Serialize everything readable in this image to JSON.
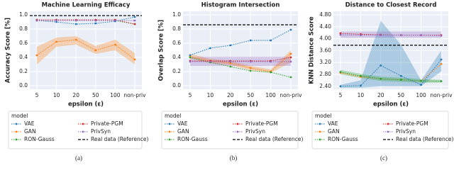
{
  "chart_data": [
    {
      "type": "line",
      "title": "Machine Learning Efficacy",
      "xlabel": "epsilon (ε)",
      "ylabel": "Accuracy Score [%]",
      "categories": [
        "5",
        "10",
        "20",
        "50",
        "100",
        "non-priv"
      ],
      "series": [
        {
          "name": "VAE",
          "color": "#1f77b4",
          "values": [
            0.92,
            0.9,
            0.87,
            0.88,
            0.91,
            0.97
          ]
        },
        {
          "name": "GAN",
          "color": "#ff7f0e",
          "values": [
            0.43,
            0.62,
            0.65,
            0.5,
            0.58,
            0.37
          ],
          "lower": [
            0.3,
            0.55,
            0.58,
            0.45,
            0.5,
            0.3
          ],
          "upper": [
            0.55,
            0.68,
            0.7,
            0.56,
            0.65,
            0.46
          ]
        },
        {
          "name": "RON-Gauss",
          "color": "#2ca02c",
          "values": [
            0.93,
            0.93,
            0.92,
            0.92,
            0.92,
            0.87
          ]
        },
        {
          "name": "Private-PGM",
          "color": "#d62728",
          "values": [
            0.93,
            0.93,
            0.93,
            0.93,
            0.93,
            0.87
          ]
        },
        {
          "name": "PrivSyn",
          "color": "#9467bd",
          "values": [
            0.92,
            0.92,
            0.92,
            0.92,
            0.92,
            0.92
          ]
        }
      ],
      "reference": {
        "name": "Real data (Reference)",
        "value": 0.99
      },
      "ylim": [
        -0.05,
        1.05
      ],
      "yticks": [
        {
          "value": 0,
          "label": "0.0"
        },
        {
          "value": 0.2,
          "label": "0.2"
        },
        {
          "value": 0.4,
          "label": "0.4"
        },
        {
          "value": 0.6,
          "label": "0.6"
        },
        {
          "value": 0.8,
          "label": "0.8"
        },
        {
          "value": 1,
          "label": "1.0"
        }
      ],
      "grid": true,
      "legend_title": "model",
      "caption": "(a)"
    },
    {
      "type": "line",
      "title": "Histogram Intersection",
      "xlabel": "epsilon (ε)",
      "ylabel": "Overlap Score [%]",
      "categories": [
        "5",
        "10",
        "20",
        "50",
        "100",
        "non-priv"
      ],
      "series": [
        {
          "name": "VAE",
          "color": "#1f77b4",
          "values": [
            0.43,
            0.53,
            0.57,
            0.64,
            0.64,
            0.79
          ]
        },
        {
          "name": "GAN",
          "color": "#ff7f0e",
          "values": [
            0.41,
            0.35,
            0.32,
            0.25,
            0.2,
            0.45
          ],
          "lower": [
            0.38,
            0.32,
            0.29,
            0.22,
            0.18,
            0.33
          ],
          "upper": [
            0.45,
            0.38,
            0.35,
            0.28,
            0.23,
            0.5
          ]
        },
        {
          "name": "RON-Gauss",
          "color": "#2ca02c",
          "values": [
            0.4,
            0.33,
            0.27,
            0.21,
            0.19,
            0.12
          ]
        },
        {
          "name": "Private-PGM",
          "color": "#d62728",
          "values": [
            0.35,
            0.35,
            0.35,
            0.35,
            0.35,
            0.4
          ]
        },
        {
          "name": "PrivSyn",
          "color": "#9467bd",
          "values": [
            0.34,
            0.34,
            0.34,
            0.34,
            0.34,
            0.34
          ],
          "lower": [
            0.28,
            0.28,
            0.28,
            0.28,
            0.28,
            0.28
          ],
          "upper": [
            0.41,
            0.41,
            0.41,
            0.41,
            0.41,
            0.41
          ]
        }
      ],
      "reference": {
        "name": "Real data (Reference)",
        "value": 0.86
      },
      "ylim": [
        -0.05,
        1.05
      ],
      "yticks": [
        {
          "value": 0,
          "label": "0.0"
        },
        {
          "value": 0.2,
          "label": "0.2"
        },
        {
          "value": 0.4,
          "label": "0.4"
        },
        {
          "value": 0.6,
          "label": "0.6"
        },
        {
          "value": 0.8,
          "label": "0.8"
        },
        {
          "value": 1,
          "label": "1.0"
        }
      ],
      "grid": true,
      "legend_title": "model",
      "caption": "(b)"
    },
    {
      "type": "line",
      "title": "Distance to Closest Record",
      "xlabel": "epsilon (ε)",
      "ylabel": "KNN Distance Score",
      "categories": [
        "5",
        "10",
        "20",
        "50",
        "100",
        "non-priv"
      ],
      "series": [
        {
          "name": "VAE",
          "color": "#1f77b4",
          "values": [
            2.4,
            2.42,
            3.1,
            2.75,
            2.45,
            3.3
          ],
          "lower": [
            2.35,
            2.35,
            2.4,
            2.4,
            2.4,
            2.9
          ],
          "upper": [
            2.45,
            2.6,
            4.6,
            3.8,
            2.6,
            3.6
          ]
        },
        {
          "name": "GAN",
          "color": "#ff7f0e",
          "values": [
            2.85,
            2.72,
            2.65,
            2.62,
            2.58,
            3.15
          ]
        },
        {
          "name": "RON-Gauss",
          "color": "#2ca02c",
          "values": [
            2.88,
            2.75,
            2.65,
            2.62,
            2.58,
            2.57
          ],
          "lower": [
            2.8,
            2.68,
            2.58,
            2.55,
            2.52,
            2.52
          ],
          "upper": [
            2.95,
            2.82,
            2.72,
            2.69,
            2.64,
            2.62
          ]
        },
        {
          "name": "Private-PGM",
          "color": "#d62728",
          "values": [
            4.18,
            4.15,
            4.13,
            4.12,
            4.12,
            4.12
          ]
        },
        {
          "name": "PrivSyn",
          "color": "#9467bd",
          "values": [
            4.13,
            4.12,
            4.12,
            4.12,
            4.12,
            4.1
          ],
          "lower": [
            4.03,
            4.03,
            4.03,
            4.03,
            4.03,
            4.03
          ],
          "upper": [
            4.24,
            4.24,
            4.24,
            4.24,
            4.24,
            4.24
          ]
        }
      ],
      "reference": {
        "name": "Real data (Reference)",
        "value": 3.78
      },
      "ylim": [
        2.3,
        4.92
      ],
      "yticks": [
        {
          "value": 2.4,
          "label": "2.40"
        },
        {
          "value": 2.8,
          "label": "2.80"
        },
        {
          "value": 3.2,
          "label": "3.20"
        },
        {
          "value": 3.6,
          "label": "3.60"
        },
        {
          "value": 4,
          "label": "4.00"
        },
        {
          "value": 4.4,
          "label": "4.40"
        },
        {
          "value": 4.8,
          "label": "4.80"
        }
      ],
      "grid": true,
      "legend_title": "model",
      "caption": "(c)"
    }
  ]
}
